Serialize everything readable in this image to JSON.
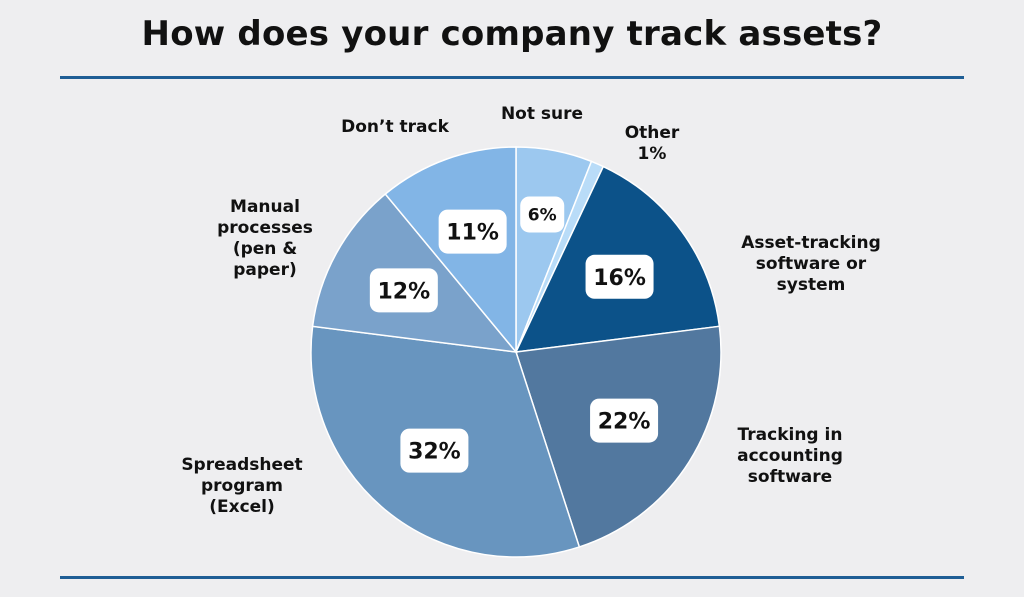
{
  "title": "How does your company track assets?",
  "chart_data": {
    "type": "pie",
    "title": "How does your company track assets?",
    "slices": [
      {
        "label": "Not sure",
        "value": 6,
        "display": "6%",
        "color": "#9cc8ef"
      },
      {
        "label": "Other",
        "value": 1,
        "display": "1%",
        "color": "#b9dcf8"
      },
      {
        "label": "Asset-tracking software or system",
        "value": 16,
        "display": "16%",
        "color": "#0c5289"
      },
      {
        "label": "Tracking in accounting software",
        "value": 22,
        "display": "22%",
        "color": "#52789f"
      },
      {
        "label": "Spreadsheet program (Excel)",
        "value": 32,
        "display": "32%",
        "color": "#6895bf"
      },
      {
        "label": "Manual processes (pen & paper)",
        "value": 12,
        "display": "12%",
        "color": "#7aa2cb"
      },
      {
        "label": "Don’t track",
        "value": 11,
        "display": "11%",
        "color": "#82b5e6"
      }
    ]
  },
  "outer_labels": {
    "not_sure": "Not sure",
    "other": "Other\n1%",
    "asset_tracking": "Asset-tracking\nsoftware or\nsystem",
    "accounting": "Tracking in\naccounting\nsoftware",
    "spreadsheet": "Spreadsheet\nprogram\n(Excel)",
    "manual": "Manual\nprocesses\n(pen &\npaper)",
    "dont_track": "Don’t track"
  }
}
